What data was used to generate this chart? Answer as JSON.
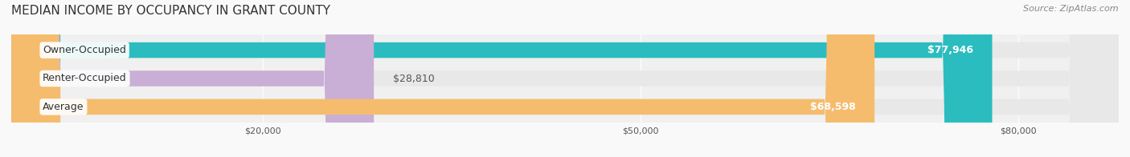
{
  "title": "MEDIAN INCOME BY OCCUPANCY IN GRANT COUNTY",
  "source": "Source: ZipAtlas.com",
  "categories": [
    "Owner-Occupied",
    "Renter-Occupied",
    "Average"
  ],
  "values": [
    77946,
    28810,
    68598
  ],
  "bar_colors": [
    "#2bbcbf",
    "#c9aed6",
    "#f5bc6e"
  ],
  "bar_labels": [
    "$77,946",
    "$28,810",
    "$68,598"
  ],
  "xlim": [
    0,
    88000
  ],
  "xticks": [
    20000,
    50000,
    80000
  ],
  "xticklabels": [
    "$20,000",
    "$50,000",
    "$80,000"
  ],
  "background_color": "#f0f0f0",
  "bar_bg_color": "#e8e8e8",
  "title_fontsize": 11,
  "source_fontsize": 8,
  "label_fontsize": 9,
  "bar_height": 0.55,
  "bar_label_color_inside": "#ffffff",
  "bar_label_color_outside": "#555555"
}
